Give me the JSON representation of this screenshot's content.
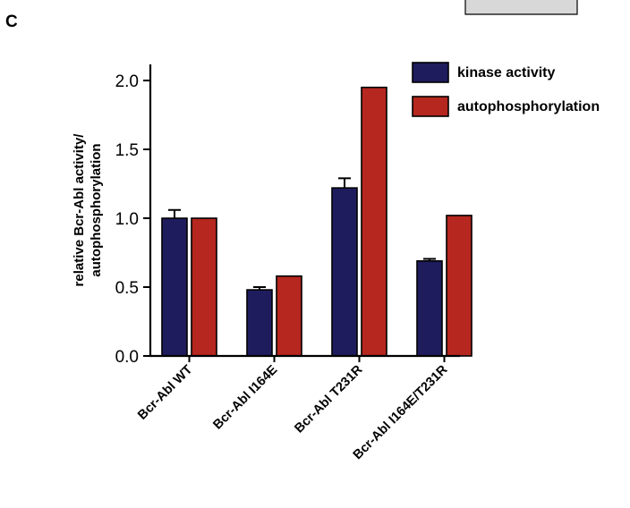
{
  "panel_label": "C",
  "chart_data": {
    "type": "bar",
    "title": "",
    "ylabel_lines": [
      "relative Bcr-Abl activity/",
      "autophosphorylation"
    ],
    "xlabel": "",
    "ylim": [
      0,
      2.0
    ],
    "yticks": [
      0.0,
      0.5,
      1.0,
      1.5,
      2.0
    ],
    "ytick_labels": [
      "0.0",
      "0.5",
      "1.0",
      "1.5",
      "2.0"
    ],
    "categories": [
      "Bcr-Abl WT",
      "Bcr-Abl I164E",
      "Bcr-Abl T231R",
      "Bcr-Abl I164E/T231R"
    ],
    "series": [
      {
        "name": "kinase activity",
        "color": "#1f1c5e",
        "values": [
          1.0,
          0.48,
          1.22,
          0.69
        ],
        "errors": [
          0.06,
          0.02,
          0.07,
          0.015
        ]
      },
      {
        "name": "autophosphorylation",
        "color": "#b5271f",
        "values": [
          1.0,
          0.58,
          1.95,
          1.02
        ],
        "errors": [
          0,
          0,
          0,
          0
        ]
      }
    ],
    "legend_position": "top-right",
    "grid": false
  }
}
